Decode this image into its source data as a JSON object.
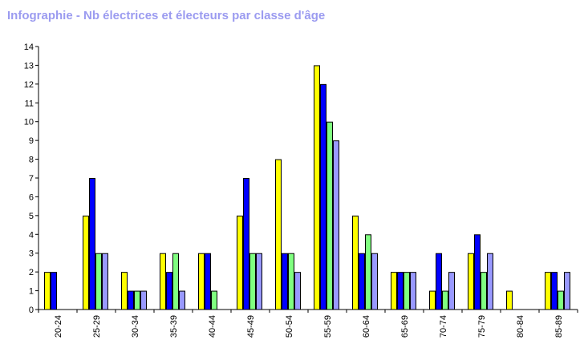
{
  "title": "Infographie - Nb électrices et électeurs par classe d'âge",
  "colors": {
    "title": "#9b9bf0",
    "axis": "#000000"
  },
  "chart_data": {
    "type": "bar",
    "title": "Infographie - Nb électrices et électeurs par classe d'âge",
    "xlabel": "",
    "ylabel": "",
    "ylim": [
      0,
      14
    ],
    "yticks": [
      0,
      1,
      2,
      3,
      4,
      5,
      6,
      7,
      8,
      9,
      10,
      11,
      12,
      13,
      14
    ],
    "grid": false,
    "legend": "none",
    "categories": [
      "20-24",
      "25-29",
      "30-34",
      "35-39",
      "40-44",
      "45-49",
      "50-54",
      "55-59",
      "60-64",
      "65-69",
      "70-74",
      "75-79",
      "80-84",
      "85-89"
    ],
    "series": [
      {
        "color": "#ffff00",
        "values": [
          2,
          5,
          2,
          3,
          3,
          5,
          8,
          13,
          5,
          2,
          1,
          3,
          1,
          2
        ]
      },
      {
        "color": "#0000ff",
        "values": [
          2,
          7,
          1,
          2,
          3,
          7,
          3,
          12,
          3,
          2,
          3,
          4,
          0,
          2
        ]
      },
      {
        "color": "#80ff80",
        "values": [
          0,
          3,
          1,
          3,
          1,
          3,
          3,
          10,
          4,
          2,
          1,
          2,
          0,
          1
        ]
      },
      {
        "color": "#9999ff",
        "values": [
          0,
          3,
          1,
          1,
          0,
          3,
          2,
          9,
          3,
          2,
          2,
          3,
          0,
          2
        ]
      }
    ]
  }
}
